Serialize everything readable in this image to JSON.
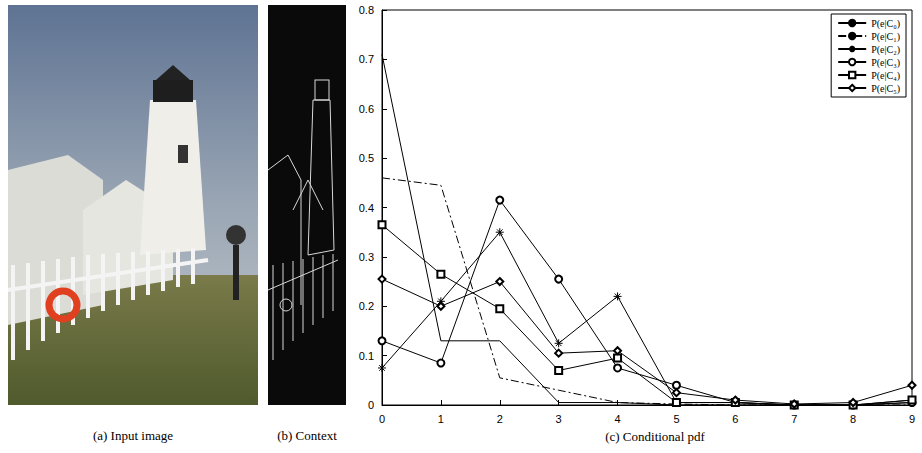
{
  "panels": [
    {
      "caption": "(a) Input image"
    },
    {
      "caption": "(b) Context"
    }
  ],
  "chart_data": {
    "type": "line",
    "title": "(c) Conditional pdf",
    "x": [
      0,
      1,
      2,
      3,
      4,
      5,
      6,
      7,
      8,
      9
    ],
    "series": [
      {
        "name": "P(e|C₀)",
        "color": "#000000",
        "marker": "none",
        "line_style": "solid",
        "values": [
          0.71,
          0.13,
          0.13,
          0.005,
          0.005,
          0,
          0,
          0,
          0,
          0.005
        ]
      },
      {
        "name": "P(e|C₁)",
        "color": "#000000",
        "marker": "none",
        "line_style": "dashdot",
        "values": [
          0.46,
          0.445,
          0.055,
          0.03,
          0.005,
          0.002,
          0,
          0,
          0,
          0
        ]
      },
      {
        "name": "P(e|C₂)",
        "color": "#000000",
        "marker": "star",
        "line_style": "solid",
        "values": [
          0.075,
          0.21,
          0.35,
          0.125,
          0.22,
          0.005,
          0.005,
          0,
          0,
          0.01
        ]
      },
      {
        "name": "P(e|C₃)",
        "color": "#000000",
        "marker": "circle",
        "line_style": "solid",
        "values": [
          0.13,
          0.085,
          0.415,
          0.255,
          0.075,
          0.04,
          0.005,
          0,
          0,
          0.005
        ]
      },
      {
        "name": "P(e|C₄)",
        "color": "#000000",
        "marker": "square",
        "line_style": "solid",
        "values": [
          0.365,
          0.265,
          0.195,
          0.07,
          0.095,
          0.005,
          0.005,
          0,
          0,
          0.01
        ]
      },
      {
        "name": "P(e|C₅)",
        "color": "#000000",
        "marker": "diamond",
        "line_style": "solid",
        "values": [
          0.255,
          0.2,
          0.25,
          0.105,
          0.11,
          0.025,
          0.01,
          0.002,
          0.005,
          0.04
        ]
      }
    ],
    "xlim": [
      0,
      9
    ],
    "xticks": [
      0,
      1,
      2,
      3,
      4,
      5,
      6,
      7,
      8,
      9
    ],
    "ylim": [
      0,
      0.8
    ],
    "yticks": [
      0,
      0.1,
      0.2,
      0.3,
      0.4,
      0.5,
      0.6,
      0.7,
      0.8
    ],
    "grid": false,
    "legend": "top-right"
  }
}
